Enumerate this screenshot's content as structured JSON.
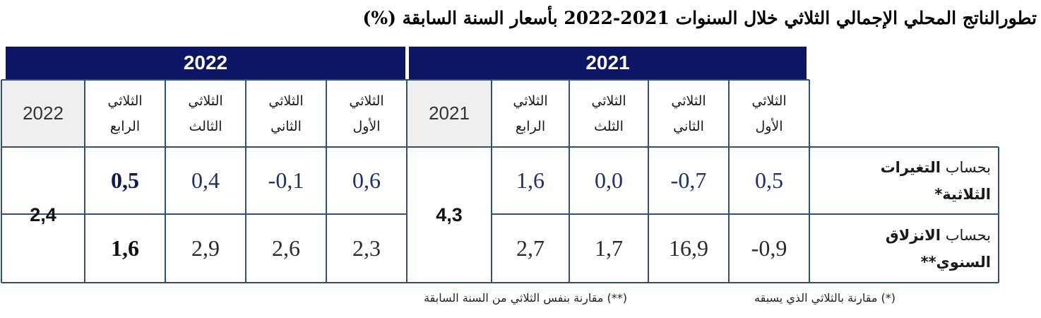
{
  "title": "تطورالناتج المحلي الإجمالي الثلاثي خلال السنوات 2021-2022 بأسعار السنة السابقة (%)",
  "years": {
    "y2022": "2022",
    "y2021": "2021"
  },
  "headers_2022": {
    "q4": [
      "الثلاثي",
      "الرابع"
    ],
    "q3": [
      "الثلاثي",
      "الثالث"
    ],
    "q2": [
      "الثلاثي",
      "الثاني"
    ],
    "q1": [
      "الثلاثي",
      "الأول"
    ],
    "annual": "2022"
  },
  "headers_2021": {
    "q4": [
      "الثلاثي",
      "الرابع"
    ],
    "q3": [
      "الثلاثي",
      "الثلث"
    ],
    "q2": [
      "الثلاثي",
      "الثاني"
    ],
    "q1": [
      "الثلاثي",
      "الأول"
    ],
    "annual": "2021"
  },
  "rows": {
    "quarterly": {
      "label_prefix": "بحساب ",
      "label_bold": "التغيرات",
      "label_line2": "الثلاثية*",
      "v2022": {
        "q4": "0,5",
        "q3": "0,4",
        "q2": "-0,1",
        "q1": "0,6"
      },
      "v2021": {
        "q4": "1,6",
        "q3": "0,0",
        "q2": "-0,7",
        "q1": "0,5"
      }
    },
    "yoy": {
      "label_prefix": "بحساب ",
      "label_bold": "الانزلاق",
      "label_line2": "السنوي**",
      "v2022": {
        "q4": "1,6",
        "q3": "2,9",
        "q2": "2,6",
        "q1": "2,3"
      },
      "v2021": {
        "q4": "2,7",
        "q3": "1,7",
        "q2": "16,9",
        "q1": "-0,9"
      }
    }
  },
  "annual_values": {
    "a2022": "2,4",
    "a2021": "4,3"
  },
  "notes": {
    "n1": "(*) مقارنة بالثلاثي الذي يسبقه",
    "n2": "(**) مقارنة بنفس الثلاثي من السنة السابقة"
  },
  "colors": {
    "header_bg": "#0d1565",
    "border": "#2f4f7f",
    "year_cell_bg": "#efefef"
  }
}
